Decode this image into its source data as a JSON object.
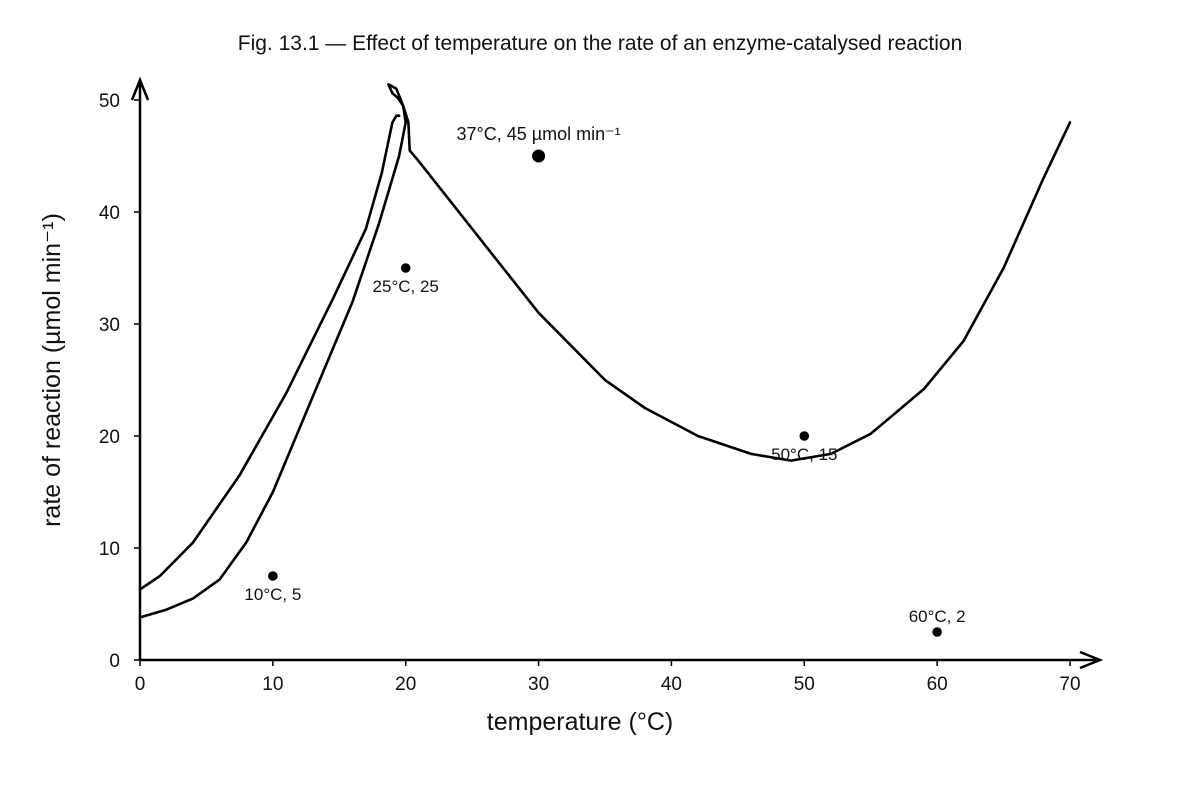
{
  "chart_data": {
    "type": "line",
    "title": "Fig. 13.1 — Effect of temperature on the rate of an enzyme-catalysed reaction",
    "xlabel": "temperature (°C)",
    "ylabel": "rate of reaction (µmol min⁻¹)",
    "xlim": [
      0,
      70
    ],
    "ylim": [
      0,
      50
    ],
    "xticks": [
      0,
      10,
      20,
      30,
      40,
      50,
      60,
      70
    ],
    "yticks": [
      0,
      10,
      20,
      30,
      40,
      50
    ],
    "x_tick_labels": [
      "0",
      "10",
      "20",
      "30",
      "40",
      "50",
      "60",
      "70"
    ],
    "y_tick_labels": [
      "0",
      "10",
      "20",
      "30",
      "40",
      "50"
    ],
    "grid": false,
    "series": [
      {
        "values_xy": [
          [
            0,
            6.3
          ],
          [
            1.5,
            7.5
          ],
          [
            4,
            10.5
          ],
          [
            7.5,
            16.5
          ],
          [
            11,
            23.8
          ],
          [
            14.5,
            32.2
          ],
          [
            17,
            38.5
          ],
          [
            18.2,
            43.5
          ],
          [
            19,
            48
          ],
          [
            19.3,
            48.6
          ],
          [
            19.5,
            48.6
          ]
        ]
      },
      {
        "values_xy": [
          [
            0,
            3.8
          ],
          [
            2,
            4.5
          ],
          [
            4,
            5.5
          ],
          [
            6,
            7.2
          ],
          [
            8,
            10.5
          ],
          [
            10,
            15.0
          ],
          [
            13,
            23.5
          ],
          [
            16,
            32.0
          ],
          [
            18,
            39.0
          ],
          [
            19.5,
            45.0
          ],
          [
            20,
            48.0
          ],
          [
            19.8,
            49.5
          ],
          [
            19.4,
            50.2
          ],
          [
            19,
            50.6
          ],
          [
            18.7,
            51.4
          ],
          [
            19.3,
            51.0
          ],
          [
            19.8,
            49.5
          ],
          [
            20.2,
            48.0
          ],
          [
            20.3,
            45.5
          ],
          [
            21,
            44.5
          ],
          [
            23,
            41.5
          ],
          [
            26,
            37.0
          ],
          [
            30,
            31.0
          ],
          [
            35,
            25.0
          ],
          [
            38,
            22.5
          ],
          [
            42,
            20.0
          ],
          [
            46,
            18.4
          ],
          [
            49,
            17.8
          ],
          [
            52,
            18.4
          ],
          [
            55,
            20.2
          ],
          [
            59,
            24.2
          ],
          [
            62,
            28.5
          ],
          [
            65,
            35.0
          ],
          [
            68,
            43.0
          ],
          [
            70,
            48.0
          ]
        ]
      }
    ],
    "points": [
      {
        "x": 10,
        "y": 7.5,
        "label": "10°C, 5",
        "size": "small",
        "label_pos": "below"
      },
      {
        "x": 20,
        "y": 35,
        "label": "25°C, 25",
        "size": "small",
        "label_pos": "below"
      },
      {
        "x": 30,
        "y": 45,
        "label": "37°C, 45 µmol min⁻¹",
        "size": "large",
        "label_pos": "above"
      },
      {
        "x": 50,
        "y": 20,
        "label": "50°C, 15",
        "size": "small",
        "label_pos": "below"
      },
      {
        "x": 60,
        "y": 2.5,
        "label": "60°C, 2",
        "size": "small",
        "label_pos": "above"
      }
    ]
  }
}
